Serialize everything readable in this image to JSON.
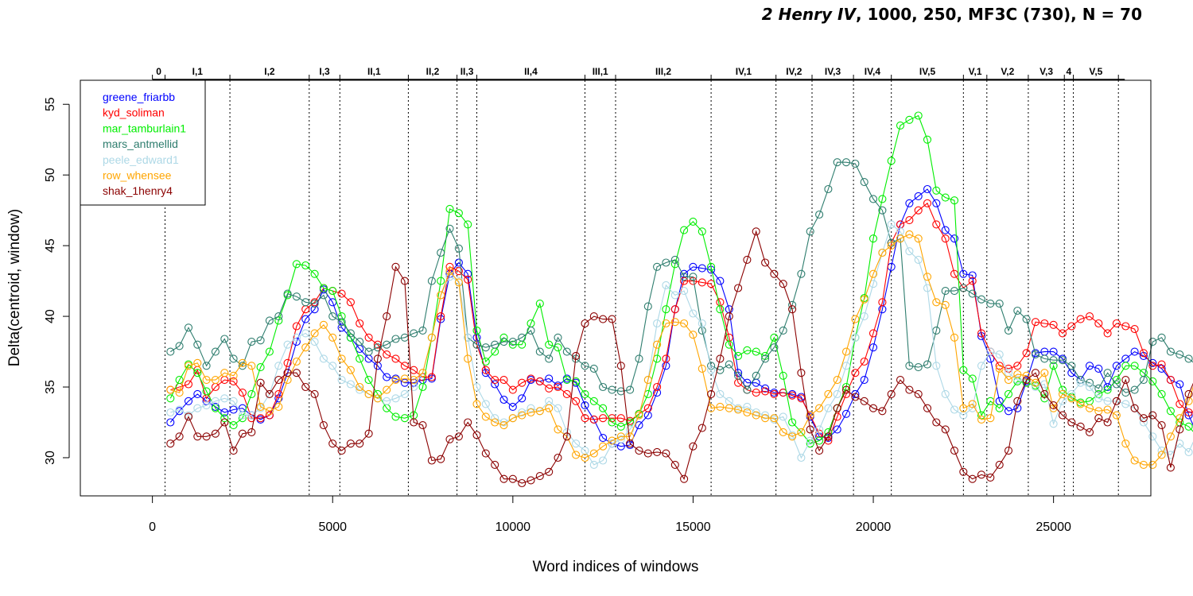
{
  "title": {
    "play": "2 Henry IV",
    "rest": ", 1000, 250, MF3C (730), N = 70"
  },
  "chart_data": {
    "type": "line",
    "xlabel": "Word indices of windows",
    "ylabel": "Delta(centroid, window)",
    "xlim": [
      -2000,
      27700
    ],
    "ylim": [
      27.3,
      56.7
    ],
    "xticks": [
      0,
      5000,
      10000,
      15000,
      20000,
      25000
    ],
    "yticks": [
      30,
      35,
      40,
      45,
      50,
      55
    ],
    "grid": false,
    "legend_position": "top-left",
    "scenes": [
      {
        "label": "0",
        "start": 0,
        "end": 350
      },
      {
        "label": "I,1",
        "start": 350,
        "end": 2150
      },
      {
        "label": "I,2",
        "start": 2150,
        "end": 4350
      },
      {
        "label": "I,3",
        "start": 4350,
        "end": 5200
      },
      {
        "label": "II,1",
        "start": 5200,
        "end": 7100
      },
      {
        "label": "II,2",
        "start": 7100,
        "end": 8450
      },
      {
        "label": "II,3",
        "start": 8450,
        "end": 9000
      },
      {
        "label": "II,4",
        "start": 9000,
        "end": 12000
      },
      {
        "label": "III,1",
        "start": 12000,
        "end": 12850
      },
      {
        "label": "III,2",
        "start": 12850,
        "end": 15500
      },
      {
        "label": "IV,1",
        "start": 15500,
        "end": 17300
      },
      {
        "label": "IV,2",
        "start": 17300,
        "end": 18300
      },
      {
        "label": "IV,3",
        "start": 18300,
        "end": 19450
      },
      {
        "label": "IV,4",
        "start": 19450,
        "end": 20500
      },
      {
        "label": "IV,5",
        "start": 20500,
        "end": 22500
      },
      {
        "label": "V,1",
        "start": 22500,
        "end": 23150
      },
      {
        "label": "V,2",
        "start": 23150,
        "end": 24300
      },
      {
        "label": "V,3",
        "start": 24300,
        "end": 25300
      },
      {
        "label": "4",
        "start": 25300,
        "end": 25550
      },
      {
        "label": "V,5",
        "start": 25550,
        "end": 26800
      }
    ],
    "x_start": 500,
    "x_step": 250,
    "series": [
      {
        "name": "greene_friarbb",
        "color": "#0000ff",
        "values": [
          32.5,
          33.3,
          34.0,
          34.5,
          34.0,
          33.6,
          33.2,
          33.4,
          33.5,
          33.0,
          32.7,
          33.0,
          34.2,
          36.0,
          38.2,
          39.8,
          40.5,
          41.9,
          41.0,
          39.2,
          38.5,
          37.7,
          37.0,
          36.5,
          35.7,
          35.6,
          35.3,
          35.3,
          35.5,
          35.6,
          39.8,
          43.0,
          43.8,
          43.0,
          38.5,
          36.0,
          35.2,
          34.1,
          33.6,
          34.2,
          35.5,
          35.4,
          35.6,
          35.1,
          35.6,
          35.3,
          33.7,
          32.7,
          31.4,
          31.0,
          30.8,
          30.9,
          32.3,
          33.0,
          34.6,
          36.5,
          40.5,
          43.0,
          43.5,
          43.4,
          43.3,
          42.5,
          40.5,
          36.0,
          35.3,
          35.3,
          34.9,
          34.6,
          34.6,
          34.5,
          34.3,
          32.9,
          31.5,
          31.4,
          32.0,
          33.1,
          34.5,
          35.5,
          37.8,
          40.5,
          43.5,
          46.5,
          48.0,
          48.5,
          49.0,
          48.0,
          46.1,
          45.5,
          43.0,
          42.9,
          38.6,
          37.0,
          34.0,
          33.3,
          33.5,
          35.4,
          37.4,
          37.5,
          37.5,
          37.0,
          36.0,
          35.5,
          36.5,
          36.3,
          35.0,
          36.5,
          37.0,
          37.5,
          37.2,
          36.7,
          36.3,
          35.5,
          35.2,
          33.0,
          31.6,
          31.7,
          31.0,
          30.8,
          31.0,
          33.3,
          35.5,
          36.9,
          36.9,
          36.6,
          36.2,
          36.3,
          35.8,
          35.2,
          34.9,
          34.7,
          34.5,
          34.4,
          34.6,
          37.0,
          39.1,
          37.5,
          35.0,
          34.0,
          36.0,
          37.5,
          40.0,
          37.3,
          39.0,
          37.9,
          37.8,
          37.8,
          37.5
        ]
      },
      {
        "name": "kyd_soliman",
        "color": "#ff0000",
        "values": [
          34.8,
          35.0,
          35.2,
          36.2,
          34.2,
          35.0,
          35.5,
          35.4,
          34.6,
          32.8,
          32.8,
          33.0,
          34.5,
          36.7,
          39.3,
          40.5,
          41.0,
          42.0,
          41.8,
          41.6,
          41.0,
          39.5,
          38.5,
          38.0,
          37.3,
          37.0,
          36.5,
          36.2,
          35.7,
          35.7,
          40.0,
          43.5,
          43.2,
          42.6,
          38.0,
          36.2,
          35.5,
          35.5,
          34.8,
          35.3,
          35.6,
          35.4,
          34.9,
          35.0,
          34.5,
          34.0,
          32.8,
          32.7,
          32.8,
          32.8,
          32.8,
          32.6,
          33.1,
          33.5,
          35.0,
          37.0,
          40.5,
          42.5,
          42.5,
          42.4,
          42.3,
          41.0,
          38.5,
          35.3,
          34.8,
          34.6,
          34.7,
          34.5,
          34.6,
          34.4,
          34.2,
          33.0,
          31.7,
          31.2,
          32.9,
          34.5,
          36.0,
          36.8,
          38.8,
          41.0,
          45.2,
          46.5,
          46.8,
          47.5,
          48.0,
          46.5,
          45.5,
          43.0,
          42.0,
          42.5,
          38.8,
          37.5,
          36.5,
          36.3,
          36.5,
          37.4,
          39.6,
          39.5,
          39.4,
          38.8,
          39.3,
          39.8,
          40.0,
          39.5,
          38.8,
          39.5,
          39.3,
          39.1,
          37.4,
          36.5,
          36.6,
          35.5,
          33.8,
          33.2,
          33.3,
          33.0,
          33.0,
          32.5,
          33.2,
          34.5,
          35.5,
          36.0,
          35.5,
          35.3,
          34.6,
          34.4,
          34.0,
          33.5,
          32.8,
          32.5,
          32.3,
          32.0,
          34.0,
          36.0,
          38.5,
          36.2,
          35.2,
          36.3,
          37.5,
          38.5,
          41.0,
          38.0,
          39.5,
          36.5,
          35.4,
          35.0,
          35.5,
          36.1
        ]
      },
      {
        "name": "mar_tamburlain1",
        "color": "#00ee00",
        "values": [
          34.2,
          35.5,
          36.6,
          36.0,
          34.7,
          33.5,
          32.8,
          32.3,
          32.8,
          34.5,
          36.4,
          37.5,
          39.7,
          41.5,
          43.7,
          43.6,
          43.0,
          42.0,
          41.8,
          40.0,
          38.5,
          37.0,
          35.5,
          34.5,
          33.5,
          32.9,
          32.8,
          33.0,
          35.0,
          38.5,
          42.5,
          47.6,
          47.3,
          46.5,
          39.0,
          36.8,
          37.5,
          38.5,
          38.0,
          38.0,
          39.5,
          40.9,
          38.0,
          37.8,
          35.5,
          35.4,
          34.5,
          34.0,
          33.5,
          32.5,
          32.2,
          32.5,
          33.1,
          34.5,
          37.0,
          40.5,
          43.7,
          46.1,
          46.7,
          46.0,
          43.5,
          40.5,
          38.0,
          37.2,
          37.6,
          37.5,
          37.2,
          38.5,
          35.8,
          32.5,
          31.8,
          31.0,
          31.2,
          31.8,
          33.5,
          35.0,
          38.5,
          41.3,
          45.5,
          48.3,
          51.0,
          53.5,
          53.9,
          54.2,
          52.5,
          48.9,
          48.4,
          48.2,
          36.2,
          35.6,
          33.0,
          34.0,
          33.5,
          34.5,
          35.4,
          35.3,
          35.1,
          34.2,
          36.5,
          34.8,
          34.3,
          33.9,
          34.0,
          34.5,
          34.8,
          35.5,
          36.5,
          36.5,
          36.0,
          35.4,
          34.5,
          33.3,
          32.5,
          32.2,
          31.5,
          30.8,
          30.0,
          30.1,
          30.5,
          31.0,
          34.5,
          35.5,
          35.0,
          35.3,
          34.9,
          34.5,
          34.6,
          35.5,
          36.1,
          36.7,
          38.0,
          40.5,
          42.5,
          40.2,
          38.9,
          36.8,
          36.8,
          37.5,
          40.5,
          41.5,
          38.5,
          43.1,
          42.8,
          42.5,
          42.0,
          41.8,
          41.5,
          39.8
        ]
      },
      {
        "name": "mars_antmellid",
        "color": "#2e7d6e",
        "values": [
          37.5,
          37.9,
          39.2,
          38.0,
          36.5,
          37.5,
          38.4,
          37.0,
          36.5,
          38.2,
          38.3,
          39.7,
          40.0,
          41.6,
          41.4,
          41.0,
          40.9,
          41.5,
          40.0,
          39.6,
          38.8,
          38.2,
          37.5,
          37.8,
          38.0,
          38.4,
          38.5,
          38.8,
          39.0,
          42.5,
          44.5,
          46.2,
          44.8,
          38.5,
          38.0,
          37.8,
          38.0,
          38.2,
          38.2,
          38.5,
          39.0,
          37.5,
          37.0,
          38.5,
          37.5,
          37.0,
          36.5,
          36.3,
          35.0,
          34.8,
          34.7,
          34.8,
          37.0,
          40.7,
          43.5,
          43.8,
          44.0,
          42.8,
          42.8,
          39.0,
          36.5,
          36.2,
          36.6,
          35.8,
          34.8,
          35.8,
          37.0,
          37.8,
          39.0,
          40.8,
          43.0,
          46.0,
          47.2,
          49.0,
          50.9,
          50.9,
          50.8,
          49.5,
          48.3,
          47.5,
          45.2,
          45.5,
          36.5,
          36.4,
          36.6,
          39.0,
          41.8,
          41.8,
          42.0,
          41.6,
          41.2,
          40.9,
          40.9,
          39.0,
          40.4,
          39.8,
          37.3,
          37.0,
          36.9,
          36.9,
          36.5,
          35.5,
          35.3,
          34.9,
          36.0,
          35.2,
          34.6,
          34.8,
          35.5,
          38.2,
          38.5,
          37.5,
          37.3,
          37.0,
          36.5,
          36.0,
          35.8,
          36.2,
          36.0,
          38.5,
          40.5,
          39.5,
          37.0,
          36.8,
          38.5,
          40.0,
          41.5,
          39.8,
          40.6,
          39.5,
          38.4,
          38.2,
          37.5,
          36.8,
          35.3
        ]
      },
      {
        "name": "peele_edward1",
        "color": "#add8e6",
        "values": [
          33.2,
          33.4,
          33.0,
          33.5,
          33.7,
          34.0,
          34.2,
          34.0,
          33.0,
          33.0,
          33.5,
          34.5,
          36.5,
          38.0,
          38.5,
          38.8,
          38.2,
          37.0,
          36.5,
          35.5,
          35.2,
          34.8,
          34.5,
          34.2,
          34.0,
          34.2,
          34.5,
          35.0,
          36.0,
          38.5,
          41.5,
          42.8,
          42.5,
          38.5,
          35.0,
          33.8,
          32.8,
          32.5,
          32.8,
          33.2,
          33.5,
          33.3,
          34.0,
          33.5,
          31.8,
          31.0,
          30.5,
          29.5,
          29.8,
          31.0,
          31.3,
          32.0,
          33.0,
          35.5,
          39.5,
          42.2,
          41.5,
          41.8,
          40.2,
          39.5,
          36.2,
          34.5,
          34.0,
          33.5,
          33.6,
          33.2,
          33.0,
          32.7,
          32.9,
          31.6,
          30.0,
          31.2,
          32.0,
          33.5,
          34.5,
          36.5,
          38.5,
          40.0,
          42.3,
          44.5,
          46.5,
          46.0,
          44.6,
          44.0,
          42.0,
          36.5,
          34.5,
          33.4,
          33.0,
          33.5,
          36.5,
          37.5,
          37.3,
          36.0,
          35.5,
          35.5,
          35.0,
          35.2,
          32.4,
          34.0,
          34.5,
          35.3,
          35.0,
          34.2,
          34.0,
          34.0,
          33.8,
          33.5,
          32.5,
          31.5,
          30.5,
          30.2,
          31.0,
          30.4,
          31.8,
          32.5,
          33.8,
          35.5,
          35.0,
          34.8,
          35.2,
          34.9,
          34.8,
          34.8,
          34.8,
          35.0,
          35.1,
          35.5,
          36.0,
          35.8,
          34.3,
          33.4,
          33.0,
          34.6,
          36.0,
          37.2,
          36.3,
          36.8,
          35.5,
          35.3,
          34.8,
          34.5,
          34.1
        ]
      },
      {
        "name": "row_whensee",
        "color": "#ffa500",
        "values": [
          34.8,
          34.6,
          36.5,
          36.7,
          35.5,
          35.5,
          36.0,
          35.8,
          36.7,
          36.5,
          33.6,
          33.3,
          33.6,
          35.5,
          36.8,
          37.8,
          38.8,
          39.4,
          38.5,
          37.0,
          36.2,
          35.0,
          34.5,
          34.2,
          34.8,
          35.5,
          35.6,
          35.5,
          36.0,
          38.5,
          41.5,
          43.2,
          42.4,
          37.0,
          33.8,
          32.9,
          32.5,
          32.3,
          32.8,
          33.0,
          33.2,
          33.3,
          33.5,
          32.0,
          31.5,
          30.2,
          30.0,
          30.3,
          30.8,
          31.2,
          31.5,
          31.5,
          33.0,
          35.5,
          38.0,
          39.5,
          39.6,
          39.5,
          38.7,
          36.3,
          33.5,
          33.6,
          33.5,
          33.4,
          33.2,
          33.0,
          32.8,
          32.8,
          31.8,
          31.5,
          31.8,
          33.0,
          33.5,
          34.5,
          35.5,
          37.5,
          39.8,
          41.2,
          43.0,
          44.5,
          45.0,
          45.5,
          45.8,
          45.5,
          42.8,
          41.0,
          40.8,
          38.5,
          33.5,
          33.8,
          32.7,
          32.8,
          36.3,
          35.5,
          35.9,
          35.8,
          35.3,
          36.0,
          33.5,
          34.5,
          34.2,
          33.8,
          33.5,
          33.3,
          33.4,
          33.0,
          31.0,
          29.8,
          29.5,
          29.5,
          30.2,
          31.5,
          32.8,
          34.0,
          36.0,
          35.5,
          36.2,
          36.5,
          37.0,
          36.5,
          36.3,
          36.1,
          37.7,
          35.0,
          35.0,
          36.0,
          33.3,
          32.8,
          32.0,
          31.8,
          33.2,
          35.0,
          36.5,
          37.0,
          35.0,
          35.3,
          35.4,
          35.5,
          35.0,
          34.8,
          34.2,
          33.0
        ]
      },
      {
        "name": "shak_1henry4",
        "color": "#8b0000",
        "values": [
          31.0,
          31.5,
          32.9,
          31.5,
          31.5,
          31.7,
          32.5,
          30.5,
          31.7,
          31.8,
          35.3,
          34.5,
          35.5,
          36.0,
          36.0,
          35.0,
          34.5,
          32.3,
          31.0,
          30.5,
          31.0,
          31.0,
          31.7,
          37.0,
          40.0,
          43.5,
          42.5,
          32.5,
          32.3,
          29.8,
          29.9,
          31.3,
          31.5,
          32.5,
          31.6,
          30.3,
          29.5,
          28.5,
          28.5,
          28.2,
          28.4,
          28.7,
          29.0,
          30.0,
          31.5,
          37.2,
          39.5,
          40.0,
          39.8,
          39.8,
          36.5,
          31.0,
          30.5,
          30.3,
          30.4,
          30.3,
          29.5,
          28.5,
          30.8,
          32.1,
          34.5,
          37.0,
          40.0,
          42.0,
          44.0,
          46.0,
          43.8,
          43.0,
          42.3,
          40.5,
          36.0,
          32.0,
          30.5,
          31.5,
          33.5,
          34.8,
          34.3,
          34.0,
          33.5,
          33.3,
          34.5,
          35.5,
          34.8,
          34.5,
          33.5,
          32.5,
          32.0,
          30.5,
          29.0,
          28.5,
          28.8,
          28.6,
          29.5,
          30.5,
          34.0,
          35.5,
          36.0,
          34.5,
          33.7,
          33.0,
          32.5,
          32.2,
          31.8,
          32.8,
          32.5,
          34.0,
          35.5,
          33.5,
          32.8,
          33.0,
          32.3,
          29.3,
          32.0,
          34.5,
          36.0,
          36.8,
          33.5,
          34.2,
          35.8,
          34.0,
          33.0,
          32.8,
          33.2,
          33.5,
          32.5,
          33.0
        ]
      }
    ]
  }
}
